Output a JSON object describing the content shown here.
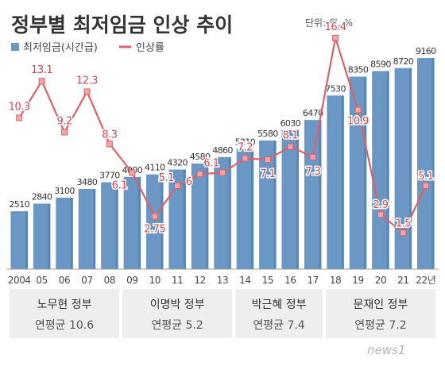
{
  "header": {
    "title": "정부별 최저임금 인상 추이",
    "unit_note": "단위: 원, %"
  },
  "legend": {
    "bar_label": "최저임금(시간급)",
    "line_label": "인상률"
  },
  "footer": {
    "logo": "news1"
  },
  "colors": {
    "bar": "#6b97c4",
    "bar_dark": "#4a78a8",
    "line": "#d9626a",
    "marker": "#f2a5ab",
    "line_label": "#c84a52",
    "panel": "#eeeeee",
    "text": "#333333"
  },
  "chart_data": {
    "type": "bar",
    "x_labels": [
      "2004",
      "05",
      "06",
      "07",
      "08",
      "09",
      "10",
      "11",
      "12",
      "13",
      "14",
      "15",
      "16",
      "17",
      "18",
      "19",
      "20",
      "21",
      "22년"
    ],
    "bar_series": {
      "name": "최저임금(시간급)",
      "values": [
        2510,
        2840,
        3100,
        3480,
        3770,
        4000,
        4110,
        4320,
        4580,
        4860,
        5210,
        5580,
        6030,
        6470,
        7530,
        8350,
        8590,
        8720,
        9160
      ],
      "labels": [
        "2510",
        "2840",
        "3100",
        "3480",
        "3770",
        "4000",
        "4110",
        "4320",
        "4580",
        "4860",
        "5210",
        "5580",
        "6030",
        "6470",
        "7530",
        "8350",
        "8590",
        "8720",
        "9160"
      ]
    },
    "line_series": {
      "name": "인상률",
      "values": [
        10.3,
        13.1,
        9.2,
        12.3,
        8.3,
        6.1,
        2.75,
        5.1,
        6,
        6.1,
        7.2,
        7.1,
        8.1,
        7.3,
        16.4,
        10.9,
        2.9,
        1.5,
        5.1
      ],
      "labels": [
        "10.3",
        "13.1",
        "9.2",
        "12.3",
        "8.3",
        "6.1",
        "2.75",
        "5.1",
        "6",
        "6.1",
        "7.2",
        "7.1",
        "8.1",
        "7.3",
        "16.4",
        "10.9",
        "2.9",
        "1.5",
        "5.1"
      ]
    },
    "governments": [
      {
        "name": "노무현 정부",
        "avg": "연평균 10.6",
        "start": 0,
        "end": 4
      },
      {
        "name": "이명박 정부",
        "avg": "연평균 5.2",
        "start": 5,
        "end": 9
      },
      {
        "name": "박근혜 정부",
        "avg": "연평균 7.4",
        "start": 10,
        "end": 13
      },
      {
        "name": "문재인 정부",
        "avg": "연평균 7.2",
        "start": 14,
        "end": 18
      }
    ]
  }
}
